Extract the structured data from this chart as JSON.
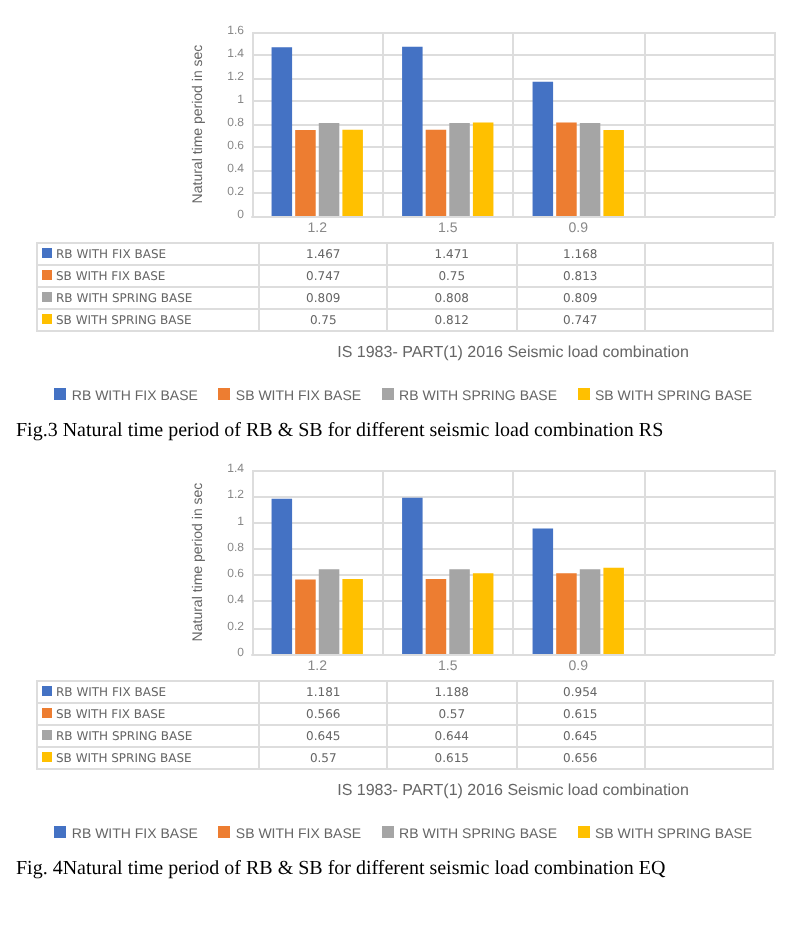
{
  "chart_data": [
    {
      "type": "bar",
      "ylabel": "Natural time period in sec",
      "xlabel": "IS 1983- PART(1) 2016 Seismic load combination",
      "categories": [
        "1.2",
        "1.5",
        "0.9",
        null
      ],
      "series": [
        {
          "name": "RB WITH FIX BASE",
          "color": "#4472c4",
          "values": [
            1.467,
            1.471,
            1.168,
            null
          ]
        },
        {
          "name": "SB WITH FIX BASE",
          "color": "#ed7d31",
          "values": [
            0.747,
            0.75,
            0.813,
            null
          ]
        },
        {
          "name": "RB WITH SPRING BASE",
          "color": "#a5a5a5",
          "values": [
            0.809,
            0.808,
            0.809,
            null
          ]
        },
        {
          "name": "SB WITH SPRING BASE",
          "color": "#ffc000",
          "values": [
            0.75,
            0.812,
            0.747,
            null
          ]
        }
      ],
      "ylim": [
        0,
        1.6
      ],
      "yticks": [
        0,
        0.2,
        0.4,
        0.6,
        0.8,
        1,
        1.2,
        1.4,
        1.6
      ],
      "grid": true,
      "legend": "bottom",
      "data_labels": true,
      "annotations": [
        "Fig.3 Natural time period of RB & SB for different seismic load combination RS"
      ]
    },
    {
      "type": "bar",
      "ylabel": "Natural time period in sec",
      "xlabel": "IS 1983- PART(1) 2016 Seismic load combination",
      "categories": [
        "1.2",
        "1.5",
        "0.9",
        null
      ],
      "series": [
        {
          "name": "RB WITH FIX BASE",
          "color": "#4472c4",
          "values": [
            1.181,
            1.188,
            0.954,
            null
          ]
        },
        {
          "name": "SB WITH FIX BASE",
          "color": "#ed7d31",
          "values": [
            0.566,
            0.57,
            0.615,
            null
          ]
        },
        {
          "name": "RB WITH SPRING BASE",
          "color": "#a5a5a5",
          "values": [
            0.645,
            0.644,
            0.645,
            null
          ]
        },
        {
          "name": "SB WITH SPRING BASE",
          "color": "#ffc000",
          "values": [
            0.57,
            0.615,
            0.656,
            null
          ]
        }
      ],
      "ylim": [
        0,
        1.4
      ],
      "yticks": [
        0,
        0.2,
        0.4,
        0.6,
        0.8,
        1,
        1.2,
        1.4
      ],
      "grid": true,
      "legend": "bottom",
      "data_labels": true,
      "annotations": [
        "Fig. 4Natural time period of RB & SB for different seismic load combination EQ"
      ]
    }
  ]
}
